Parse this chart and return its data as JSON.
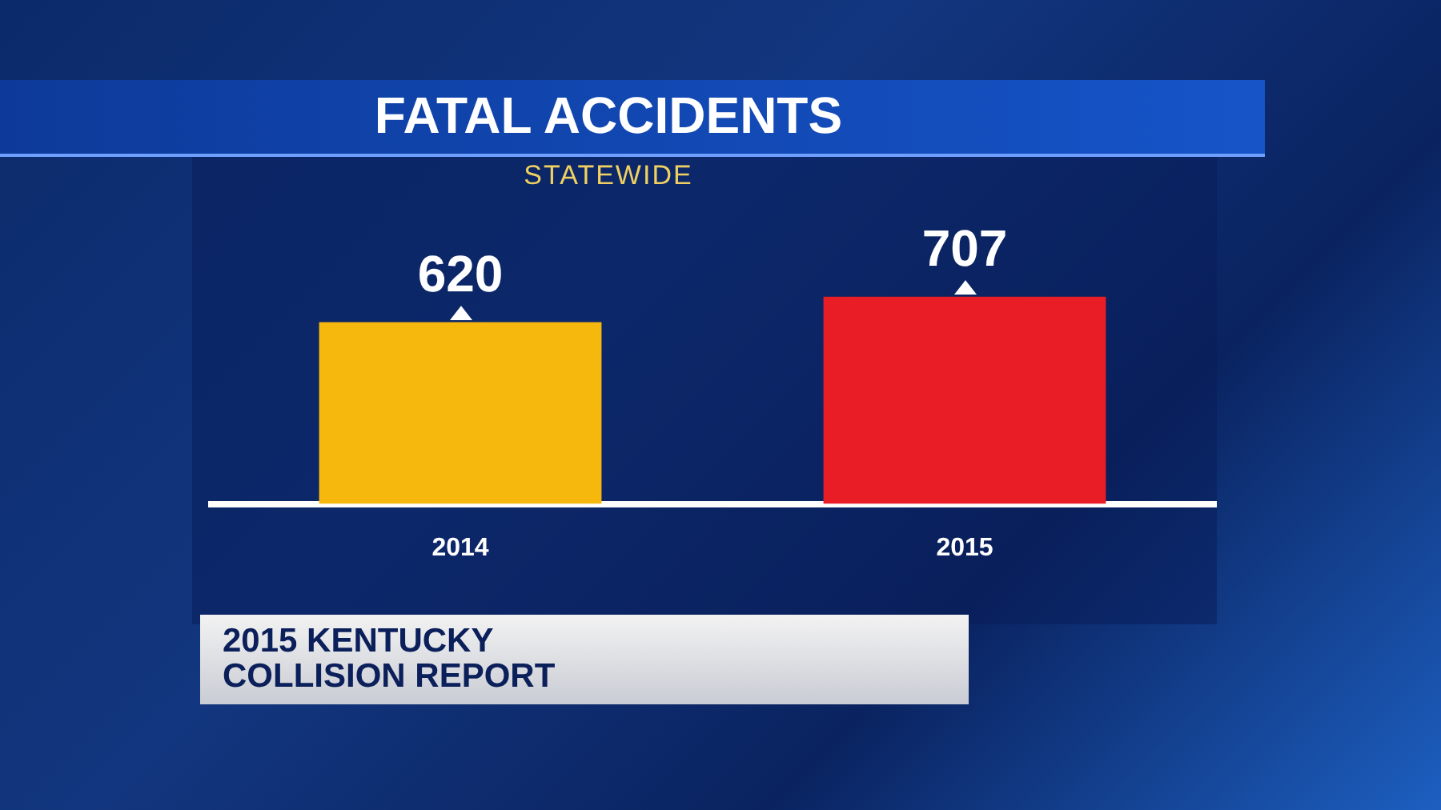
{
  "chart_data": {
    "type": "bar",
    "title": "FATAL ACCIDENTS",
    "subtitle": "STATEWIDE",
    "categories": [
      "2014",
      "2015"
    ],
    "values": [
      620,
      707
    ],
    "colors": [
      "#f7b80d",
      "#e81d25"
    ],
    "data_labels": true,
    "grid": false,
    "legend": false,
    "tick_labels": "x",
    "annotations": [
      "2015 KENTUCKY\nCOLLISION REPORT"
    ]
  }
}
